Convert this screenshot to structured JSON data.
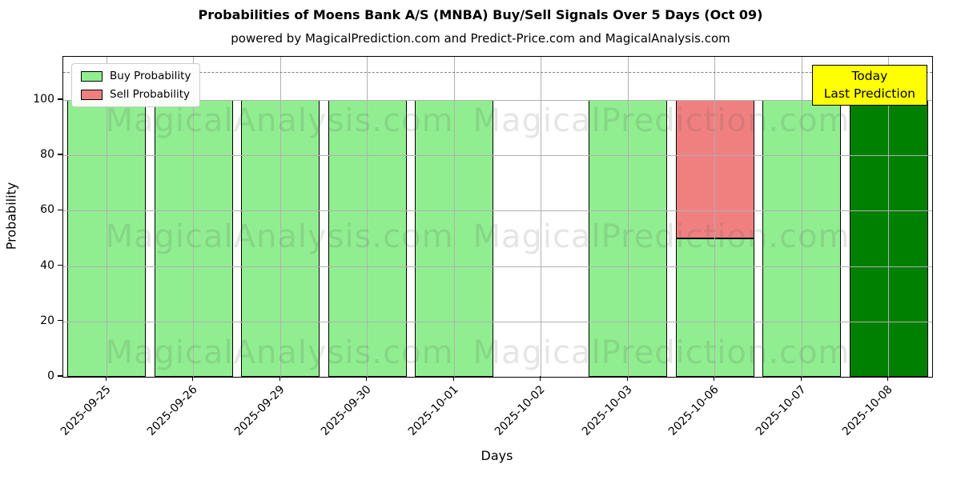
{
  "title": "Probabilities of Moens Bank A/S (MNBA) Buy/Sell Signals Over 5 Days (Oct 09)",
  "subtitle": "powered by MagicalPrediction.com and Predict-Price.com and MagicalAnalysis.com",
  "axes": {
    "x_label": "Days",
    "y_label": "Probability"
  },
  "legend": {
    "items": [
      {
        "label": "Buy Probability",
        "color": "#90EE90"
      },
      {
        "label": "Sell Probability",
        "color": "#F08080"
      }
    ]
  },
  "annotation": {
    "line1": "Today",
    "line2": "Last Prediction",
    "bg_color": "#FFFF00"
  },
  "watermarks": {
    "left_text": "MagicalAnalysis.com",
    "right_text": "MagicalPrediction.com"
  },
  "colors": {
    "buy": "#90EE90",
    "sell": "#F08080",
    "today_buy": "#008000",
    "grid": "#b0b0b0",
    "dashed_line": "#7f7f7f"
  },
  "chart_data": {
    "type": "bar",
    "stacked": true,
    "title": "Probabilities of Moens Bank A/S (MNBA) Buy/Sell Signals Over 5 Days (Oct 09)",
    "xlabel": "Days",
    "ylabel": "Probability",
    "categories": [
      "2025-09-25",
      "2025-09-26",
      "2025-09-29",
      "2025-09-30",
      "2025-10-01",
      "2025-10-02",
      "2025-10-03",
      "2025-10-06",
      "2025-10-07",
      "2025-10-08"
    ],
    "series": [
      {
        "name": "Buy Probability",
        "color": "#90EE90",
        "values": [
          100,
          100,
          100,
          100,
          100,
          0,
          100,
          50,
          100,
          100
        ]
      },
      {
        "name": "Sell Probability",
        "color": "#F08080",
        "values": [
          0,
          0,
          0,
          0,
          0,
          0,
          0,
          50,
          0,
          0
        ]
      }
    ],
    "today_index": 9,
    "today_color": "#008000",
    "y_ticks": [
      0,
      20,
      40,
      60,
      80,
      100
    ],
    "ylim": [
      0,
      115.6
    ],
    "dashed_line_y": 110,
    "grid": true,
    "legend_position": "upper left",
    "x_tick_rotation_deg": 45
  }
}
